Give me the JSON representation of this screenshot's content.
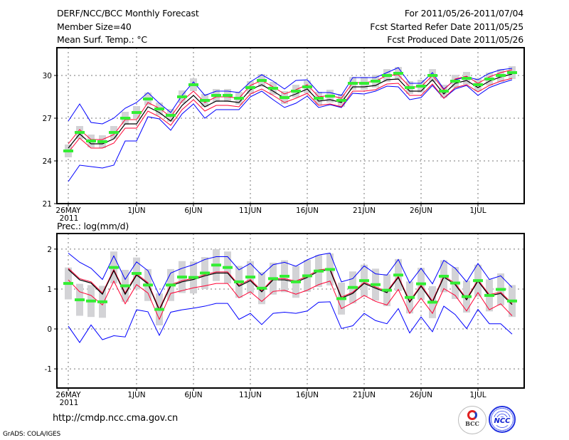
{
  "header": {
    "title": "DERF/NCC/BCC Monthly Forecast",
    "member_size": "Member Size=40",
    "variable": "Mean Surf. Temp.: °C",
    "for_range": "For 2011/05/26-2011/07/04",
    "started": "Fcst Started Refer Date 2011/05/25",
    "produced": "Fcst Produced Date 2011/05/26"
  },
  "footer": {
    "url": "http://cmdp.ncc.cma.gov.cn",
    "grads": "GrADS: COLA/IGES",
    "logo_bcc": "BCC",
    "logo_ncc": "NCC"
  },
  "colors": {
    "max_min": "#0000ff",
    "band": "#ff0033",
    "mean": "#000000",
    "median": "#33ee33",
    "box": "#d3d3d6"
  },
  "chart_data": [
    {
      "type": "line",
      "title": "Mean Surf. Temp.: °C",
      "days": 40,
      "xtick_labels": [
        "26MAY",
        "1JUN",
        "6JUN",
        "11JUN",
        "16JUN",
        "21JUN",
        "26JUN",
        "1JUL"
      ],
      "xtick_day_index": [
        0,
        6,
        11,
        16,
        21,
        26,
        31,
        36
      ],
      "year_label": "2011",
      "yticks": [
        21,
        24,
        27,
        30
      ],
      "ylim": [
        21,
        31.95
      ],
      "grid": true,
      "mean": [
        24.9,
        25.9,
        25.2,
        25.2,
        25.55,
        26.6,
        26.6,
        27.8,
        27.4,
        26.8,
        27.9,
        28.6,
        27.8,
        28.2,
        28.2,
        28.1,
        29.0,
        29.35,
        28.9,
        28.4,
        28.7,
        29.05,
        28.2,
        28.3,
        28.1,
        29.2,
        29.2,
        29.3,
        29.7,
        29.75,
        28.9,
        28.9,
        29.7,
        28.7,
        29.45,
        29.65,
        29.15,
        29.6,
        29.9,
        30.1
      ],
      "band_halfwidth": 0.3,
      "max": [
        26.8,
        28.0,
        26.7,
        26.6,
        27.0,
        27.7,
        28.1,
        28.8,
        28.05,
        27.4,
        28.6,
        29.55,
        28.6,
        28.9,
        28.9,
        28.8,
        29.55,
        30.05,
        29.6,
        29.05,
        29.65,
        29.7,
        28.8,
        28.8,
        28.6,
        29.85,
        29.85,
        29.85,
        30.2,
        30.55,
        29.45,
        29.45,
        30.2,
        29.05,
        29.7,
        29.9,
        29.7,
        30.15,
        30.4,
        30.5
      ],
      "min": [
        22.55,
        23.7,
        23.6,
        23.5,
        23.7,
        25.4,
        25.4,
        27.1,
        26.95,
        26.15,
        27.3,
        28.0,
        27.0,
        27.6,
        27.6,
        27.6,
        28.5,
        28.9,
        28.3,
        27.75,
        28.05,
        28.55,
        27.75,
        27.95,
        27.75,
        28.75,
        28.7,
        28.9,
        29.25,
        29.2,
        28.3,
        28.45,
        29.3,
        28.4,
        29.05,
        29.3,
        28.6,
        29.15,
        29.45,
        29.7
      ],
      "median": [
        24.7,
        26.0,
        25.4,
        25.35,
        26.0,
        27.0,
        27.4,
        28.35,
        27.65,
        27.2,
        28.5,
        29.35,
        28.25,
        28.6,
        28.6,
        28.4,
        29.15,
        29.65,
        29.1,
        28.45,
        28.9,
        29.2,
        28.4,
        28.55,
        28.25,
        29.45,
        29.45,
        29.6,
        30.0,
        30.15,
        29.15,
        29.25,
        30.0,
        28.9,
        29.6,
        29.8,
        29.35,
        29.75,
        30.0,
        30.2
      ],
      "box_halfwidth": 0.45
    },
    {
      "type": "line",
      "title": "Prec.: log(mm/d)",
      "days": 40,
      "xtick_labels": [
        "26MAY",
        "1JUN",
        "6JUN",
        "11JUN",
        "16JUN",
        "21JUN",
        "26JUN",
        "1JUL"
      ],
      "xtick_day_index": [
        0,
        6,
        11,
        16,
        21,
        26,
        31,
        36
      ],
      "year_label": "2011",
      "yticks": [
        -1,
        0,
        1,
        2
      ],
      "ylim": [
        -1.48,
        2.39
      ],
      "grid": true,
      "mean": [
        1.49,
        1.23,
        1.15,
        0.87,
        1.46,
        0.87,
        1.35,
        1.13,
        0.47,
        1.08,
        1.18,
        1.24,
        1.33,
        1.4,
        1.4,
        1.07,
        1.21,
        0.93,
        1.23,
        1.23,
        1.17,
        1.29,
        1.45,
        1.48,
        0.77,
        0.89,
        1.14,
        1.02,
        0.91,
        1.29,
        0.67,
        1.07,
        0.67,
        1.3,
        1.11,
        0.73,
        1.2,
        0.83,
        0.89,
        0.61
      ],
      "upper_band_offset": 0.03,
      "lower_band": [
        1.23,
        0.93,
        0.84,
        0.6,
        1.2,
        0.63,
        1.11,
        0.9,
        0.24,
        0.89,
        0.96,
        1.03,
        1.08,
        1.14,
        1.14,
        0.78,
        0.93,
        0.69,
        0.94,
        0.97,
        0.87,
        0.97,
        1.11,
        1.2,
        0.51,
        0.66,
        0.84,
        0.69,
        0.6,
        0.99,
        0.39,
        0.77,
        0.39,
        1.01,
        0.84,
        0.45,
        0.91,
        0.48,
        0.63,
        0.33
      ],
      "max": [
        1.9,
        1.67,
        1.52,
        1.24,
        1.83,
        1.24,
        1.68,
        1.46,
        0.84,
        1.4,
        1.52,
        1.61,
        1.74,
        1.81,
        1.81,
        1.48,
        1.64,
        1.35,
        1.61,
        1.67,
        1.57,
        1.73,
        1.85,
        1.9,
        1.18,
        1.26,
        1.58,
        1.38,
        1.35,
        1.74,
        1.15,
        1.52,
        1.13,
        1.72,
        1.52,
        1.18,
        1.64,
        1.24,
        1.33,
        1.04
      ],
      "min": [
        0.07,
        -0.34,
        0.1,
        -0.27,
        -0.17,
        -0.2,
        0.48,
        0.43,
        -0.16,
        0.42,
        0.48,
        0.52,
        0.57,
        0.64,
        0.64,
        0.24,
        0.39,
        0.11,
        0.39,
        0.42,
        0.39,
        0.45,
        0.67,
        0.68,
        0.01,
        0.08,
        0.39,
        0.21,
        0.13,
        0.51,
        -0.1,
        0.3,
        -0.07,
        0.57,
        0.36,
        0.01,
        0.49,
        0.13,
        0.13,
        -0.13
      ],
      "median": [
        1.14,
        0.73,
        0.7,
        0.68,
        1.54,
        1.08,
        1.39,
        1.1,
        0.49,
        1.1,
        1.3,
        1.29,
        1.4,
        1.6,
        1.54,
        1.18,
        1.3,
        1.02,
        1.26,
        1.32,
        1.18,
        1.33,
        1.45,
        1.49,
        0.76,
        1.04,
        1.21,
        1.11,
        0.97,
        1.35,
        0.79,
        1.13,
        0.67,
        1.32,
        1.15,
        0.81,
        1.21,
        0.84,
        0.99,
        0.7
      ],
      "box_halfwidth": 0.4
    }
  ]
}
